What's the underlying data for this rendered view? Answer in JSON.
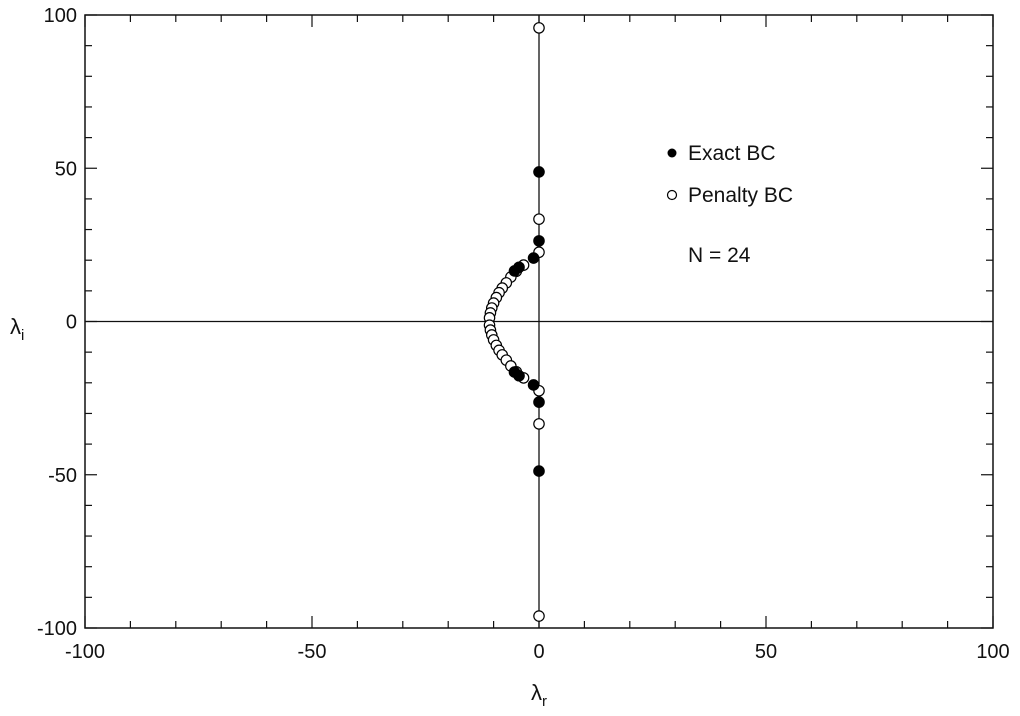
{
  "chart_data": {
    "type": "scatter",
    "xlabel": "λ",
    "xlabel_sub": "r",
    "ylabel": "λ",
    "ylabel_sub": "i",
    "xlim": [
      -100,
      100
    ],
    "ylim": [
      -100,
      100
    ],
    "xticks": [
      -100,
      -50,
      0,
      50,
      100
    ],
    "yticks": [
      -100,
      -50,
      0,
      50,
      100
    ],
    "x_tick_labels": [
      "-100",
      "-50",
      "0",
      "50",
      "100"
    ],
    "y_tick_labels": [
      "-100",
      "-50",
      "0",
      "50",
      "100"
    ],
    "grid": false,
    "zero_lines": true,
    "legend_position": "top-right",
    "annotation": "N = 24",
    "series": [
      {
        "name": "Exact BC",
        "marker": "filled-circle",
        "color": "#000000",
        "points": [
          [
            0,
            48.8
          ],
          [
            0,
            26.3
          ],
          [
            -1.2,
            20.7
          ],
          [
            -4.4,
            17.7
          ],
          [
            -5.4,
            16.5
          ],
          [
            0,
            -48.8
          ],
          [
            0,
            -26.3
          ],
          [
            -1.2,
            -20.7
          ],
          [
            -4.4,
            -17.7
          ],
          [
            -5.4,
            -16.5
          ]
        ]
      },
      {
        "name": "Penalty BC",
        "marker": "open-circle",
        "color": "#000000",
        "points": [
          [
            0,
            95.8
          ],
          [
            0,
            33.4
          ],
          [
            0,
            22.6
          ],
          [
            -3.4,
            18.4
          ],
          [
            -5.0,
            16.4
          ],
          [
            -6.2,
            14.5
          ],
          [
            -7.2,
            12.6
          ],
          [
            -8.1,
            10.9
          ],
          [
            -8.8,
            9.4
          ],
          [
            -9.4,
            7.8
          ],
          [
            -10.0,
            6.0
          ],
          [
            -10.4,
            4.4
          ],
          [
            -10.7,
            2.8
          ],
          [
            -10.9,
            1.2
          ],
          [
            -10.9,
            -1.2
          ],
          [
            -10.7,
            -2.8
          ],
          [
            -10.4,
            -4.4
          ],
          [
            -10.0,
            -6.0
          ],
          [
            -9.4,
            -7.8
          ],
          [
            -8.8,
            -9.4
          ],
          [
            -8.1,
            -10.9
          ],
          [
            -7.2,
            -12.6
          ],
          [
            -6.2,
            -14.5
          ],
          [
            -5.0,
            -16.4
          ],
          [
            -3.4,
            -18.4
          ],
          [
            0,
            -22.6
          ],
          [
            0,
            -33.4
          ],
          [
            0,
            -96.1
          ]
        ]
      }
    ]
  }
}
